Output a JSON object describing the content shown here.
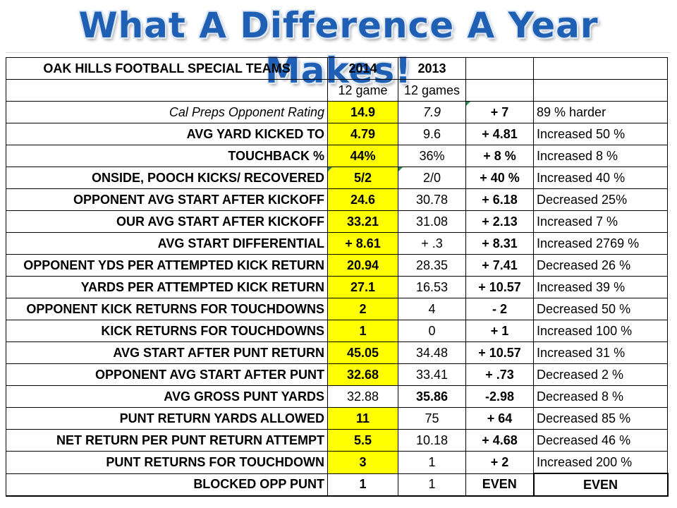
{
  "title": "What A Difference A Year Makes!",
  "table": {
    "header": {
      "label": "OAK HILLS FOOTBALL SPECIAL TEAMS",
      "col_2014": "2014",
      "col_2013": "2013"
    },
    "subheader": {
      "games_2014": "12 game",
      "games_2013": "12 games"
    },
    "rows": [
      {
        "label": "Cal Preps Opponent Rating",
        "v2014": "14.9",
        "v2013": "7.9",
        "diff": "+ 7",
        "note": "89 % harder"
      },
      {
        "label": "AVG YARD KICKED TO",
        "v2014": "4.79",
        "v2013": "9.6",
        "diff": "+ 4.81",
        "note": "Increased 50 %"
      },
      {
        "label": "TOUCHBACK %",
        "v2014": "44%",
        "v2013": "36%",
        "diff": "+ 8 %",
        "note": "Increased 8 %"
      },
      {
        "label": "ONSIDE, POOCH KICKS/ RECOVERED",
        "v2014": "5/2",
        "v2013": "2/0",
        "diff": "+ 40 %",
        "note": "Increased 40 %"
      },
      {
        "label": "OPPONENT AVG START AFTER KICKOFF",
        "v2014": "24.6",
        "v2013": "30.78",
        "diff": "+ 6.18",
        "note": "Decreased 25%"
      },
      {
        "label": "OUR AVG START AFTER KICKOFF",
        "v2014": "33.21",
        "v2013": "31.08",
        "diff": "+ 2.13",
        "note": "Increased 7 %"
      },
      {
        "label": "AVG START DIFFERENTIAL",
        "v2014": "+ 8.61",
        "v2013": "+ .3",
        "diff": "+ 8.31",
        "note": "Increased 2769 %"
      },
      {
        "label": "OPPONENT YDS PER ATTEMPTED KICK RETURN",
        "v2014": "20.94",
        "v2013": "28.35",
        "diff": "+ 7.41",
        "note": "Decreased 26 %"
      },
      {
        "label": "YARDS PER ATTEMPTED KICK RETURN",
        "v2014": "27.1",
        "v2013": "16.53",
        "diff": "+ 10.57",
        "note": "Increased 39 %"
      },
      {
        "label": "OPPONENT KICK RETURNS FOR TOUCHDOWNS",
        "v2014": "2",
        "v2013": "4",
        "diff": "- 2",
        "note": "Decreased 50 %"
      },
      {
        "label": "KICK RETURNS FOR TOUCHDOWNS",
        "v2014": "1",
        "v2013": "0",
        "diff": "+ 1",
        "note": "Increased 100 %"
      },
      {
        "label": "AVG START AFTER PUNT RETURN",
        "v2014": "45.05",
        "v2013": "34.48",
        "diff": "+ 10.57",
        "note": "Increased 31 %"
      },
      {
        "label": "OPPONENT AVG START AFTER PUNT",
        "v2014": "32.68",
        "v2013": "33.41",
        "diff": "+ .73",
        "note": "Decreased 2 %"
      },
      {
        "label": "AVG GROSS PUNT YARDS",
        "v2014": "32.88",
        "v2013": "35.86",
        "diff": "-2.98",
        "note": "Decreased 8 %"
      },
      {
        "label": "PUNT RETURN YARDS ALLOWED",
        "v2014": "11",
        "v2013": "75",
        "diff": "+ 64",
        "note": "Decreased 85 %"
      },
      {
        "label": "NET RETURN PER PUNT RETURN ATTEMPT",
        "v2014": "5.5",
        "v2013": "10.18",
        "diff": "+ 4.68",
        "note": "Decreased 46 %"
      },
      {
        "label": "PUNT RETURNS FOR TOUCHDOWN",
        "v2014": "3",
        "v2013": "1",
        "diff": "+ 2",
        "note": "Increased 200 %"
      },
      {
        "label": "BLOCKED OPP PUNT",
        "v2014": "1",
        "v2013": "1",
        "diff": "EVEN",
        "note": "EVEN"
      }
    ]
  },
  "colors": {
    "title": "#1f5fb4",
    "highlight": "#ffff00",
    "worse_value": "#e53935",
    "corner_marker": "#2e8b57"
  }
}
